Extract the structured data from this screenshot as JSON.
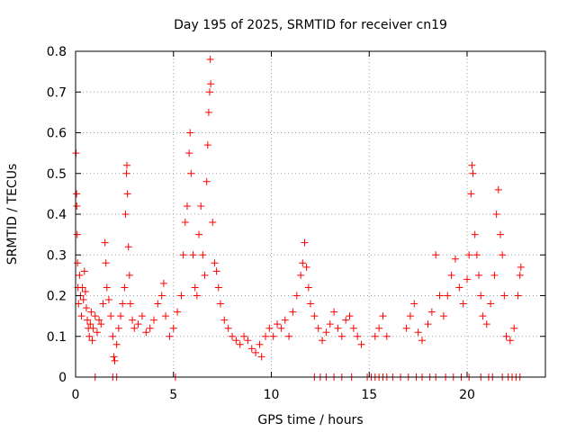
{
  "chart_data": {
    "type": "scatter",
    "title": "Day 195 of 2025, SRMTID for receiver cn19",
    "xlabel": "GPS time / hours",
    "ylabel": "SRMTID / TECUs",
    "xlim": [
      0,
      24
    ],
    "ylim": [
      0,
      0.8
    ],
    "grid": true,
    "marker": "+",
    "color": "#ff0000",
    "xticks": [
      {
        "value": 0,
        "label": "0"
      },
      {
        "value": 5,
        "label": "5"
      },
      {
        "value": 10,
        "label": "10"
      },
      {
        "value": 15,
        "label": "15"
      },
      {
        "value": 20,
        "label": "20"
      }
    ],
    "yticks": [
      {
        "value": 0,
        "label": "0"
      },
      {
        "value": 0.1,
        "label": "0.1"
      },
      {
        "value": 0.2,
        "label": "0.2"
      },
      {
        "value": 0.3,
        "label": "0.3"
      },
      {
        "value": 0.4,
        "label": "0.4"
      },
      {
        "value": 0.5,
        "label": "0.5"
      },
      {
        "value": 0.6,
        "label": "0.6"
      },
      {
        "value": 0.7,
        "label": "0.7"
      },
      {
        "value": 0.8,
        "label": "0.8"
      }
    ],
    "points": [
      [
        0.02,
        0.55
      ],
      [
        0.05,
        0.45
      ],
      [
        0.06,
        0.42
      ],
      [
        0.08,
        0.35
      ],
      [
        0.1,
        0.28
      ],
      [
        0.12,
        0.22
      ],
      [
        0.15,
        0.18
      ],
      [
        0.2,
        0.25
      ],
      [
        0.25,
        0.2
      ],
      [
        0.3,
        0.15
      ],
      [
        0.35,
        0.22
      ],
      [
        0.4,
        0.19
      ],
      [
        0.45,
        0.26
      ],
      [
        0.5,
        0.21
      ],
      [
        0.55,
        0.17
      ],
      [
        0.6,
        0.14
      ],
      [
        0.65,
        0.12
      ],
      [
        0.7,
        0.1
      ],
      [
        0.75,
        0.13
      ],
      [
        0.8,
        0.16
      ],
      [
        0.85,
        0.09
      ],
      [
        0.9,
        0.12
      ],
      [
        1.0,
        0.15
      ],
      [
        1.1,
        0.11
      ],
      [
        1.2,
        0.14
      ],
      [
        1.3,
        0.13
      ],
      [
        1.4,
        0.18
      ],
      [
        1.5,
        0.33
      ],
      [
        1.55,
        0.28
      ],
      [
        1.6,
        0.22
      ],
      [
        1.7,
        0.19
      ],
      [
        1.8,
        0.15
      ],
      [
        1.9,
        0.1
      ],
      [
        1.95,
        0.05
      ],
      [
        2.0,
        0.04
      ],
      [
        2.1,
        0.08
      ],
      [
        2.2,
        0.12
      ],
      [
        2.3,
        0.15
      ],
      [
        2.4,
        0.18
      ],
      [
        2.5,
        0.22
      ],
      [
        2.55,
        0.4
      ],
      [
        2.6,
        0.5
      ],
      [
        2.62,
        0.52
      ],
      [
        2.65,
        0.45
      ],
      [
        2.7,
        0.32
      ],
      [
        2.75,
        0.25
      ],
      [
        2.8,
        0.18
      ],
      [
        2.9,
        0.14
      ],
      [
        3.0,
        0.12
      ],
      [
        3.2,
        0.13
      ],
      [
        3.4,
        0.15
      ],
      [
        3.6,
        0.11
      ],
      [
        3.8,
        0.12
      ],
      [
        4.0,
        0.14
      ],
      [
        4.2,
        0.18
      ],
      [
        4.4,
        0.2
      ],
      [
        4.5,
        0.23
      ],
      [
        4.6,
        0.15
      ],
      [
        4.8,
        0.1
      ],
      [
        5.0,
        0.12
      ],
      [
        5.2,
        0.16
      ],
      [
        5.4,
        0.2
      ],
      [
        5.5,
        0.3
      ],
      [
        5.6,
        0.38
      ],
      [
        5.7,
        0.42
      ],
      [
        5.8,
        0.55
      ],
      [
        5.85,
        0.6
      ],
      [
        5.9,
        0.5
      ],
      [
        6.0,
        0.3
      ],
      [
        6.1,
        0.22
      ],
      [
        6.2,
        0.2
      ],
      [
        6.3,
        0.35
      ],
      [
        6.4,
        0.42
      ],
      [
        6.5,
        0.3
      ],
      [
        6.6,
        0.25
      ],
      [
        6.7,
        0.48
      ],
      [
        6.75,
        0.57
      ],
      [
        6.8,
        0.65
      ],
      [
        6.85,
        0.7
      ],
      [
        6.88,
        0.78
      ],
      [
        6.9,
        0.72
      ],
      [
        7.0,
        0.38
      ],
      [
        7.1,
        0.28
      ],
      [
        7.2,
        0.26
      ],
      [
        7.3,
        0.22
      ],
      [
        7.4,
        0.18
      ],
      [
        7.6,
        0.14
      ],
      [
        7.8,
        0.12
      ],
      [
        8.0,
        0.1
      ],
      [
        8.2,
        0.09
      ],
      [
        8.4,
        0.08
      ],
      [
        8.6,
        0.1
      ],
      [
        8.8,
        0.09
      ],
      [
        9.0,
        0.07
      ],
      [
        9.2,
        0.06
      ],
      [
        9.4,
        0.08
      ],
      [
        9.5,
        0.05
      ],
      [
        9.7,
        0.1
      ],
      [
        9.9,
        0.12
      ],
      [
        10.1,
        0.1
      ],
      [
        10.3,
        0.13
      ],
      [
        10.5,
        0.12
      ],
      [
        10.7,
        0.14
      ],
      [
        10.9,
        0.1
      ],
      [
        11.1,
        0.16
      ],
      [
        11.3,
        0.2
      ],
      [
        11.5,
        0.25
      ],
      [
        11.6,
        0.28
      ],
      [
        11.7,
        0.33
      ],
      [
        11.8,
        0.27
      ],
      [
        11.9,
        0.22
      ],
      [
        12.0,
        0.18
      ],
      [
        12.2,
        0.15
      ],
      [
        12.4,
        0.12
      ],
      [
        12.6,
        0.09
      ],
      [
        12.8,
        0.11
      ],
      [
        13.0,
        0.13
      ],
      [
        13.2,
        0.16
      ],
      [
        13.4,
        0.12
      ],
      [
        13.6,
        0.1
      ],
      [
        13.8,
        0.14
      ],
      [
        14.0,
        0.15
      ],
      [
        14.2,
        0.12
      ],
      [
        14.4,
        0.1
      ],
      [
        14.6,
        0.08
      ],
      [
        15.3,
        0.1
      ],
      [
        15.5,
        0.12
      ],
      [
        15.7,
        0.15
      ],
      [
        15.9,
        0.1
      ],
      [
        16.9,
        0.12
      ],
      [
        17.1,
        0.15
      ],
      [
        17.3,
        0.18
      ],
      [
        17.5,
        0.11
      ],
      [
        17.7,
        0.09
      ],
      [
        18.0,
        0.13
      ],
      [
        18.2,
        0.16
      ],
      [
        18.4,
        0.3
      ],
      [
        18.6,
        0.2
      ],
      [
        18.8,
        0.15
      ],
      [
        19.0,
        0.2
      ],
      [
        19.2,
        0.25
      ],
      [
        19.4,
        0.29
      ],
      [
        19.6,
        0.22
      ],
      [
        19.8,
        0.18
      ],
      [
        20.0,
        0.24
      ],
      [
        20.1,
        0.3
      ],
      [
        20.2,
        0.45
      ],
      [
        20.25,
        0.52
      ],
      [
        20.3,
        0.5
      ],
      [
        20.4,
        0.35
      ],
      [
        20.5,
        0.3
      ],
      [
        20.6,
        0.25
      ],
      [
        20.7,
        0.2
      ],
      [
        20.8,
        0.15
      ],
      [
        21.0,
        0.13
      ],
      [
        21.2,
        0.18
      ],
      [
        21.4,
        0.25
      ],
      [
        21.5,
        0.4
      ],
      [
        21.6,
        0.46
      ],
      [
        21.7,
        0.35
      ],
      [
        21.8,
        0.3
      ],
      [
        21.9,
        0.2
      ],
      [
        22.0,
        0.1
      ],
      [
        22.2,
        0.09
      ],
      [
        22.4,
        0.12
      ],
      [
        22.6,
        0.2
      ],
      [
        22.7,
        0.25
      ],
      [
        22.75,
        0.27
      ],
      [
        1.0,
        0
      ],
      [
        1.9,
        0
      ],
      [
        2.1,
        0
      ],
      [
        5.1,
        0
      ],
      [
        12.2,
        0
      ],
      [
        12.5,
        0
      ],
      [
        12.8,
        0
      ],
      [
        13.2,
        0
      ],
      [
        13.6,
        0
      ],
      [
        14.1,
        0
      ],
      [
        14.9,
        0
      ],
      [
        15.1,
        0
      ],
      [
        15.3,
        0
      ],
      [
        15.5,
        0
      ],
      [
        15.7,
        0
      ],
      [
        15.9,
        0
      ],
      [
        16.2,
        0
      ],
      [
        16.6,
        0
      ],
      [
        17.0,
        0
      ],
      [
        17.4,
        0
      ],
      [
        17.7,
        0
      ],
      [
        18.1,
        0
      ],
      [
        18.4,
        0
      ],
      [
        18.9,
        0
      ],
      [
        19.3,
        0
      ],
      [
        19.7,
        0
      ],
      [
        20.1,
        0
      ],
      [
        20.7,
        0
      ],
      [
        21.1,
        0
      ],
      [
        21.3,
        0
      ],
      [
        21.8,
        0
      ],
      [
        22.1,
        0
      ],
      [
        22.3,
        0
      ],
      [
        22.5,
        0
      ],
      [
        22.7,
        0
      ]
    ]
  }
}
